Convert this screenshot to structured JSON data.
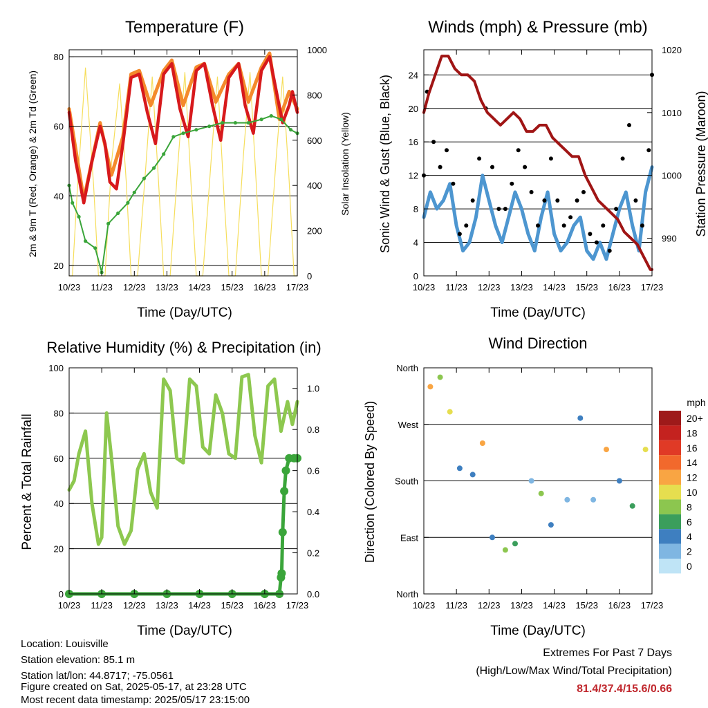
{
  "x_ticks": [
    "10/23",
    "11/23",
    "12/23",
    "13/23",
    "14/23",
    "15/23",
    "16/23",
    "17/23"
  ],
  "colors": {
    "temp_2m": "#d7191c",
    "temp_9m": "#f48a2c",
    "dewpoint": "#3aa53a",
    "solar": "#f6de5c",
    "gust": "#000000",
    "sonic_wind": "#4d96d0",
    "pressure": "#a01515",
    "humidity": "#8dc84f",
    "precip": "#3aa53a"
  },
  "panels": {
    "temperature": {
      "title": "Temperature (F)",
      "ylabel_left": "2m & 9m T (Red, Orange) & 2m Td (Green)",
      "ylabel_right": "Solar Insolation (Yellow)",
      "xlabel": "Time (Day/UTC)",
      "left_ticks": [
        "20",
        "40",
        "60",
        "80"
      ],
      "right_ticks": [
        "0",
        "200",
        "400",
        "600",
        "800",
        "1000"
      ]
    },
    "winds": {
      "title": "Winds (mph) & Pressure (mb)",
      "ylabel_left": "Sonic Wind & Gust (Blue, Black)",
      "ylabel_right": "Station Pressure (Maroon)",
      "xlabel": "Time (Day/UTC)",
      "left_ticks": [
        "0",
        "4",
        "8",
        "12",
        "16",
        "20",
        "24"
      ],
      "right_ticks": [
        "990",
        "1000",
        "1010",
        "1020"
      ]
    },
    "humidity": {
      "title": "Relative Humidity (%) & Precipitation (in)",
      "ylabel_left": "Percent & Total Rainfall",
      "xlabel": "Time (Day/UTC)",
      "left_ticks": [
        "0",
        "20",
        "40",
        "60",
        "80",
        "100"
      ],
      "right_ticks": [
        "0.0",
        "0.2",
        "0.4",
        "0.6",
        "0.8",
        "1.0"
      ]
    },
    "direction": {
      "title": "Wind Direction",
      "ylabel_left": "Direction (Colored By Speed)",
      "xlabel": "Time (Day/UTC)",
      "dir_ticks": [
        "North",
        "East",
        "South",
        "West",
        "North"
      ],
      "legend_title": "mph",
      "legend_labels": [
        "20+",
        "18",
        "16",
        "14",
        "12",
        "10",
        "8",
        "6",
        "4",
        "2",
        "0"
      ],
      "legend_colors": [
        "#9e1a1a",
        "#c4221f",
        "#e03a26",
        "#f2692c",
        "#f9a543",
        "#e6de4f",
        "#8cc64f",
        "#3b9e5c",
        "#3e7fc0",
        "#7fb6e2",
        "#bfe4f6"
      ]
    }
  },
  "chart_data": [
    {
      "type": "line",
      "title": "Temperature (F)",
      "xlabel": "Time (Day/UTC)",
      "ylabel": "2m & 9m T (Red, Orange) & 2m Td (Green)",
      "y2label": "Solar Insolation (Yellow)",
      "x": [
        "10/23",
        "11/23",
        "12/23",
        "13/23",
        "14/23",
        "15/23",
        "16/23",
        "17/23"
      ],
      "ylim": [
        17,
        82
      ],
      "y2lim": [
        0,
        1000
      ],
      "series": [
        {
          "name": "2m T",
          "axis": "left",
          "x": [
            0,
            0.2,
            0.45,
            0.7,
            0.95,
            1.1,
            1.25,
            1.45,
            1.65,
            1.9,
            2.15,
            2.4,
            2.65,
            2.9,
            3.15,
            3.4,
            3.65,
            3.9,
            4.15,
            4.4,
            4.65,
            4.9,
            5.2,
            5.4,
            5.65,
            5.9,
            6.15,
            6.4,
            6.55,
            6.75,
            6.85,
            7.0
          ],
          "values": [
            64,
            50,
            38,
            50,
            60,
            55,
            44,
            42,
            55,
            74,
            75,
            64,
            55,
            75,
            78,
            65,
            57,
            76,
            78,
            66,
            56,
            74,
            78,
            66,
            58,
            76,
            80,
            68,
            61,
            66,
            70,
            64
          ]
        },
        {
          "name": "9m T",
          "axis": "left",
          "x": [
            0,
            0.45,
            0.95,
            1.3,
            1.65,
            1.9,
            2.15,
            2.5,
            2.9,
            3.15,
            3.5,
            3.9,
            4.15,
            4.5,
            4.9,
            5.2,
            5.5,
            5.9,
            6.15,
            6.45,
            6.75,
            7.0
          ],
          "values": [
            65,
            39,
            61,
            46,
            57,
            75,
            76,
            66,
            76,
            79,
            66,
            77,
            78,
            67,
            75,
            78,
            67,
            77,
            81,
            62,
            70,
            65
          ]
        },
        {
          "name": "2m Td",
          "axis": "left",
          "x": [
            0,
            0.1,
            0.3,
            0.5,
            0.8,
            1.0,
            1.2,
            1.5,
            1.8,
            2.0,
            2.3,
            2.6,
            2.9,
            3.2,
            3.5,
            3.9,
            4.3,
            4.7,
            5.1,
            5.5,
            5.9,
            6.2,
            6.5,
            6.8,
            7.0
          ],
          "values": [
            43,
            38,
            34,
            27,
            25,
            18,
            32,
            35,
            38,
            41,
            45,
            48,
            52,
            57,
            58,
            59,
            60,
            61,
            61,
            61,
            62,
            63,
            62,
            59,
            58
          ]
        },
        {
          "name": "Solar",
          "axis": "right",
          "x": [
            0,
            0.1,
            0.25,
            0.5,
            0.75,
            0.9,
            1.1,
            1.3,
            1.55,
            1.75,
            1.9,
            2.1,
            2.35,
            2.55,
            2.75,
            2.9,
            3.1,
            3.35,
            3.55,
            3.75,
            3.9,
            4.1,
            4.35,
            4.55,
            4.75,
            4.9,
            5.1,
            5.35,
            5.55,
            5.75,
            5.9,
            6.1,
            6.35,
            6.55,
            6.75,
            6.9,
            7.0
          ],
          "values": [
            0,
            0,
            380,
            920,
            400,
            0,
            0,
            500,
            850,
            420,
            0,
            0,
            480,
            880,
            400,
            0,
            0,
            520,
            900,
            380,
            0,
            0,
            500,
            880,
            360,
            0,
            0,
            540,
            900,
            380,
            0,
            0,
            520,
            880,
            420,
            0,
            0
          ]
        }
      ]
    },
    {
      "type": "line",
      "title": "Winds (mph) & Pressure (mb)",
      "xlabel": "Time (Day/UTC)",
      "ylabel": "Sonic Wind & Gust (Blue, Black)",
      "y2label": "Station Pressure (Maroon)",
      "x": [
        "10/23",
        "11/23",
        "12/23",
        "13/23",
        "14/23",
        "15/23",
        "16/23",
        "17/23"
      ],
      "ylim": [
        0,
        27
      ],
      "y2lim": [
        984,
        1020
      ],
      "series": [
        {
          "name": "Sonic wind",
          "axis": "left",
          "x": [
            0,
            0.2,
            0.4,
            0.6,
            0.8,
            1.0,
            1.2,
            1.4,
            1.6,
            1.8,
            2.0,
            2.2,
            2.4,
            2.6,
            2.8,
            3.0,
            3.2,
            3.4,
            3.6,
            3.8,
            4.0,
            4.2,
            4.4,
            4.6,
            4.8,
            5.0,
            5.2,
            5.4,
            5.6,
            5.8,
            6.0,
            6.2,
            6.4,
            6.6,
            6.8,
            7.0
          ],
          "values": [
            7,
            10,
            8,
            9,
            11,
            6,
            3,
            4,
            7,
            12,
            9,
            6,
            4,
            7,
            10,
            8,
            5,
            3,
            7,
            10,
            5,
            3,
            4,
            6,
            7,
            3,
            2,
            4,
            2,
            5,
            8,
            10,
            6,
            3,
            10,
            13
          ]
        },
        {
          "name": "Gust",
          "axis": "left",
          "x": [
            0,
            0.1,
            0.3,
            0.5,
            0.7,
            0.9,
            1.1,
            1.3,
            1.5,
            1.7,
            1.9,
            2.1,
            2.3,
            2.5,
            2.7,
            2.9,
            3.1,
            3.3,
            3.5,
            3.7,
            3.9,
            4.1,
            4.3,
            4.5,
            4.7,
            4.9,
            5.1,
            5.3,
            5.5,
            5.7,
            5.9,
            6.1,
            6.3,
            6.5,
            6.7,
            6.9,
            7.0
          ],
          "values": [
            12,
            22,
            16,
            13,
            15,
            11,
            5,
            6,
            9,
            14,
            20,
            13,
            8,
            8,
            11,
            15,
            13,
            10,
            6,
            9,
            14,
            9,
            6,
            7,
            9,
            10,
            5,
            4,
            6,
            3,
            8,
            14,
            18,
            9,
            6,
            15,
            24
          ]
        },
        {
          "name": "Pressure",
          "axis": "right",
          "x": [
            0,
            0.15,
            0.35,
            0.55,
            0.75,
            0.95,
            1.15,
            1.35,
            1.55,
            1.75,
            1.95,
            2.15,
            2.35,
            2.55,
            2.75,
            2.95,
            3.15,
            3.35,
            3.55,
            3.75,
            3.95,
            4.15,
            4.35,
            4.55,
            4.75,
            4.95,
            5.15,
            5.35,
            5.55,
            5.75,
            5.95,
            6.15,
            6.35,
            6.55,
            6.75,
            6.95,
            7.0
          ],
          "values": [
            1010,
            1013,
            1016,
            1019,
            1019,
            1017,
            1016,
            1016,
            1015,
            1012,
            1010,
            1009,
            1008,
            1009,
            1010,
            1009,
            1007,
            1007,
            1008,
            1008,
            1006,
            1005,
            1004,
            1003,
            1003,
            1000,
            998,
            996,
            995,
            994,
            993,
            991,
            990,
            989,
            987,
            985,
            985
          ]
        }
      ]
    },
    {
      "type": "line",
      "title": "Relative Humidity (%) & Precipitation (in)",
      "xlabel": "Time (Day/UTC)",
      "ylabel": "Percent & Total Rainfall",
      "x": [
        "10/23",
        "11/23",
        "12/23",
        "13/23",
        "14/23",
        "15/23",
        "16/23",
        "17/23"
      ],
      "ylim": [
        0,
        100
      ],
      "y2lim": [
        0,
        1.1
      ],
      "series": [
        {
          "name": "RH",
          "axis": "left",
          "x": [
            0,
            0.15,
            0.3,
            0.5,
            0.7,
            0.9,
            1.0,
            1.15,
            1.3,
            1.5,
            1.7,
            1.9,
            2.1,
            2.3,
            2.5,
            2.7,
            2.9,
            3.1,
            3.3,
            3.5,
            3.7,
            3.9,
            4.1,
            4.3,
            4.5,
            4.7,
            4.9,
            5.1,
            5.3,
            5.5,
            5.7,
            5.9,
            6.1,
            6.3,
            6.5,
            6.7,
            6.85,
            7.0
          ],
          "values": [
            46,
            50,
            62,
            72,
            40,
            22,
            25,
            80,
            60,
            30,
            22,
            28,
            55,
            62,
            45,
            38,
            95,
            90,
            60,
            58,
            95,
            92,
            65,
            62,
            88,
            80,
            62,
            60,
            96,
            97,
            70,
            58,
            92,
            95,
            72,
            85,
            75,
            85
          ]
        },
        {
          "name": "Precipitation",
          "axis": "right",
          "x": [
            0,
            1,
            2,
            3,
            4,
            5,
            6,
            6.45,
            6.5,
            6.52,
            6.55,
            6.6,
            6.65,
            6.75,
            6.9,
            7.0
          ],
          "values": [
            0,
            0,
            0,
            0,
            0,
            0,
            0,
            0,
            0.08,
            0.1,
            0.3,
            0.5,
            0.6,
            0.66,
            0.66,
            0.66
          ]
        }
      ]
    },
    {
      "type": "scatter",
      "title": "Wind Direction",
      "xlabel": "Time (Day/UTC)",
      "ylabel": "Direction (Colored By Speed)",
      "x": [
        "10/23",
        "11/23",
        "12/23",
        "13/23",
        "14/23",
        "15/23",
        "16/23",
        "17/23"
      ],
      "y_categories": [
        "North",
        "East",
        "South",
        "West",
        "North"
      ],
      "ylim": [
        0,
        360
      ],
      "color_scale": "mph",
      "points_summary": [
        {
          "x": 0.2,
          "deg": 330,
          "mph": 12
        },
        {
          "x": 0.5,
          "deg": 345,
          "mph": 8
        },
        {
          "x": 0.8,
          "deg": 290,
          "mph": 10
        },
        {
          "x": 1.1,
          "deg": 200,
          "mph": 4
        },
        {
          "x": 1.5,
          "deg": 190,
          "mph": 3
        },
        {
          "x": 1.8,
          "deg": 240,
          "mph": 12
        },
        {
          "x": 2.1,
          "deg": 90,
          "mph": 4
        },
        {
          "x": 2.5,
          "deg": 70,
          "mph": 8
        },
        {
          "x": 2.8,
          "deg": 80,
          "mph": 6
        },
        {
          "x": 3.3,
          "deg": 180,
          "mph": 2
        },
        {
          "x": 3.6,
          "deg": 160,
          "mph": 8
        },
        {
          "x": 3.9,
          "deg": 110,
          "mph": 4
        },
        {
          "x": 4.4,
          "deg": 150,
          "mph": 2
        },
        {
          "x": 4.8,
          "deg": 280,
          "mph": 4
        },
        {
          "x": 5.2,
          "deg": 150,
          "mph": 2
        },
        {
          "x": 5.6,
          "deg": 230,
          "mph": 12
        },
        {
          "x": 6.0,
          "deg": 180,
          "mph": 4
        },
        {
          "x": 6.4,
          "deg": 140,
          "mph": 6
        },
        {
          "x": 6.8,
          "deg": 230,
          "mph": 10
        }
      ]
    }
  ],
  "footer": {
    "location": "Location: Louisville",
    "elevation": "Station elevation: 85.1 m",
    "latlon": "Station lat/lon: 44.8717; -75.0561",
    "created": "Figure created on Sat, 2025-05-17, at 23:28 UTC",
    "latest": "Most recent data timestamp: 2025/05/17 23:15:00"
  },
  "extremes": {
    "heading": "Extremes For Past 7 Days",
    "subheading": "(High/Low/Max Wind/Total Precipitation)",
    "values": "81.4/37.4/15.6/0.66"
  }
}
